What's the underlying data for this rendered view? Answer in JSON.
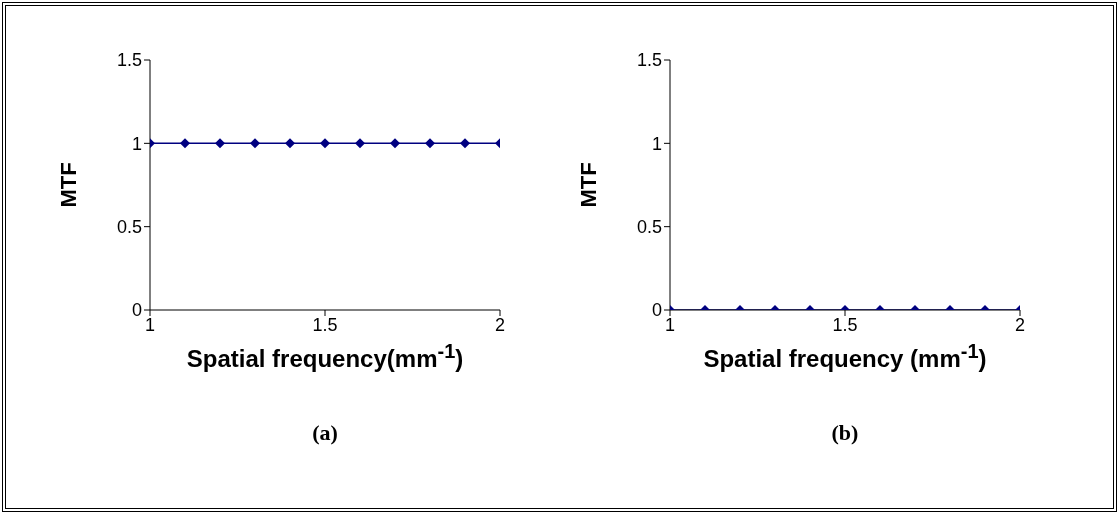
{
  "chart_data": [
    {
      "type": "line",
      "title": "(a)",
      "xlabel": "Spatial frequency(mm$^{-1}$)",
      "ylabel": "MTF",
      "x": [
        1,
        1.1,
        1.2,
        1.3,
        1.4,
        1.5,
        1.6,
        1.7,
        1.8,
        1.9,
        2
      ],
      "series": [
        {
          "color": "#000080",
          "values": [
            1,
            1,
            1,
            1,
            1,
            1,
            1,
            1,
            1,
            1,
            1
          ]
        }
      ],
      "xlim": [
        1,
        2
      ],
      "xticks": [
        1,
        1.5,
        2
      ],
      "ylim": [
        0,
        1.5
      ],
      "yticks": [
        0,
        0.5,
        1,
        1.5
      ],
      "grid": false,
      "legend": false,
      "marker": "diamond",
      "line_style": "solid"
    },
    {
      "type": "line",
      "title": "(b)",
      "xlabel": "Spatial frequency (mm$^{-1}$)",
      "ylabel": "MTF",
      "x": [
        1,
        1.1,
        1.2,
        1.3,
        1.4,
        1.5,
        1.6,
        1.7,
        1.8,
        1.9,
        2
      ],
      "series": [
        {
          "color": "#000080",
          "values": [
            0,
            0,
            0,
            0,
            0,
            0,
            0,
            0,
            0,
            0,
            0
          ]
        }
      ],
      "xlim": [
        1,
        2
      ],
      "xticks": [
        1,
        1.5,
        2
      ],
      "ylim": [
        0,
        1.5
      ],
      "yticks": [
        0,
        0.5,
        1,
        1.5
      ],
      "grid": false,
      "legend": false,
      "marker": "diamond",
      "line_style": "solid"
    }
  ]
}
